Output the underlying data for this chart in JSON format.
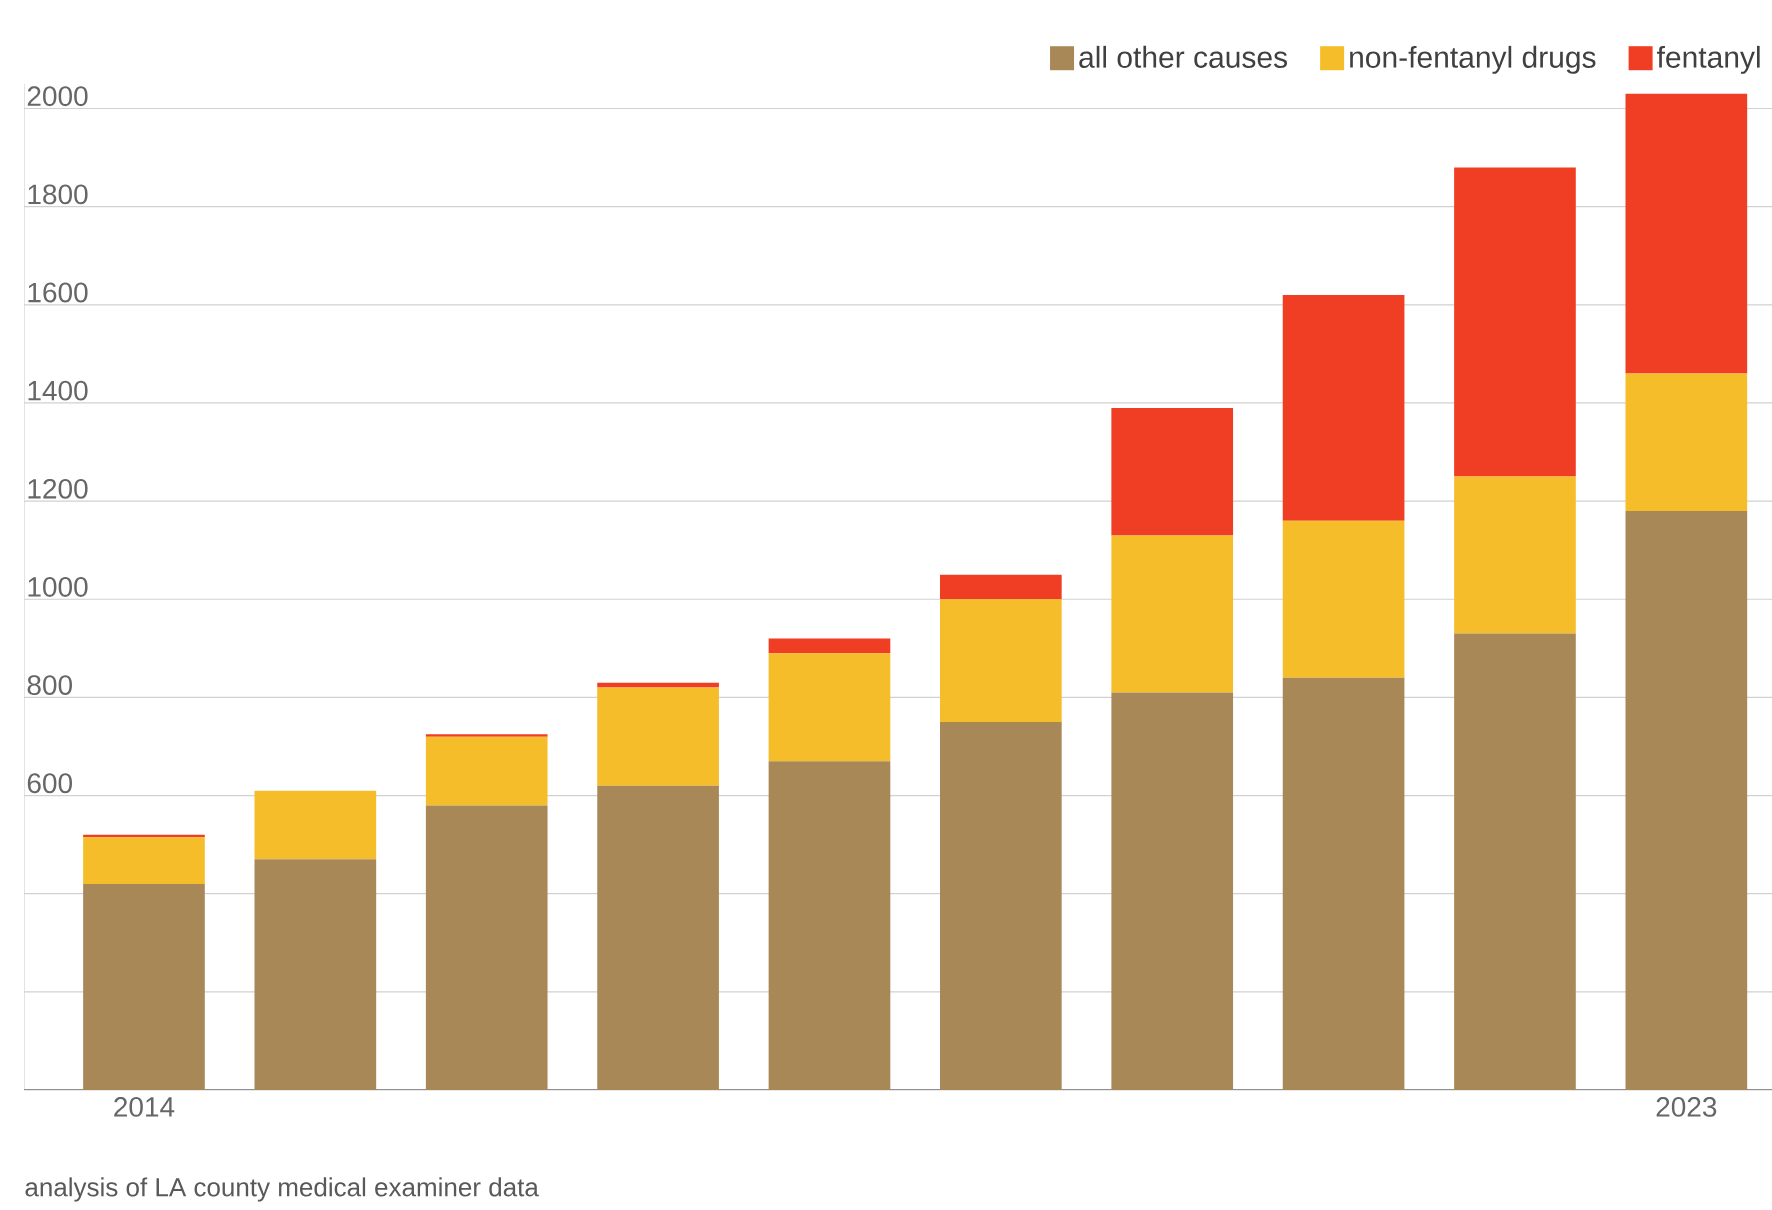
{
  "chart_data": {
    "type": "bar",
    "stacked": true,
    "categories": [
      "2014",
      null,
      null,
      null,
      null,
      null,
      null,
      null,
      null,
      "2023"
    ],
    "series": [
      {
        "name": "all other causes",
        "color": "#a98858",
        "values": [
          420,
          470,
          580,
          620,
          670,
          750,
          810,
          840,
          930,
          1180
        ]
      },
      {
        "name": "non-fentanyl drugs",
        "color": "#f5bd2a",
        "values": [
          95,
          140,
          140,
          200,
          220,
          250,
          320,
          320,
          320,
          280
        ]
      },
      {
        "name": "fentanyl",
        "color": "#ef3e23",
        "values": [
          5,
          0,
          5,
          10,
          30,
          50,
          260,
          460,
          630,
          570
        ]
      }
    ],
    "ylim": [
      0,
      2050
    ],
    "yticks": [
      {
        "value": 0,
        "label": null
      },
      {
        "value": 200,
        "label": null
      },
      {
        "value": 400,
        "label": null
      },
      600,
      800,
      1000,
      1200,
      1400,
      1600,
      1800,
      2000
    ],
    "grid": "y",
    "legend": "top right",
    "annotations": [
      "analysis of LA county medical examiner data"
    ]
  }
}
